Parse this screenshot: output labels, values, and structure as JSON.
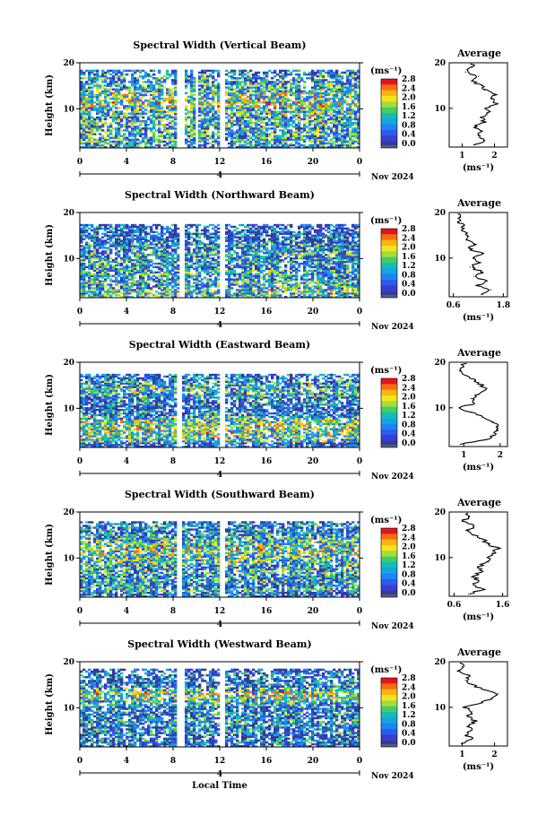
{
  "figure": {
    "xlabel": "Local Time",
    "date_label": "Nov 2024",
    "day_label": "4"
  },
  "colorbar": {
    "unit": "(ms⁻¹)",
    "ticks": [
      "2.8",
      "2.4",
      "2.0",
      "1.6",
      "1.2",
      "0.8",
      "0.4",
      "0.0"
    ],
    "colors": [
      "#e4141c",
      "#f86c10",
      "#fcb414",
      "#f4e41c",
      "#a4dc3c",
      "#44cc64",
      "#14bcb4",
      "#14a4e4",
      "#1c84f4",
      "#2c5cec",
      "#3c3cd4",
      "#303c9c",
      "#5c5c6c"
    ]
  },
  "chart_data": [
    {
      "type": "heatmap",
      "title": "Spectral Width (Vertical Beam)",
      "ylabel": "Height (km)",
      "x_ticks": [
        "0",
        "4",
        "8",
        "12",
        "16",
        "20",
        "0"
      ],
      "xlim": [
        0,
        24
      ],
      "y_ticks": [
        "20",
        "10"
      ],
      "ylim": [
        1.5,
        20
      ],
      "value_range": [
        0.0,
        3.0
      ],
      "gaps_hours": [
        [
          8.4,
          8.9
        ],
        [
          10.0,
          10.2
        ],
        [
          11.9,
          12.4
        ]
      ],
      "data_top_km": 18.5,
      "profile": {
        "title": "Average",
        "xlabel": "(ms⁻¹)",
        "x_ticks": [
          "1",
          "2"
        ],
        "x_tick_values": [
          1,
          2
        ],
        "xlim": [
          0.6,
          2.4
        ],
        "y_ticks": [
          "20",
          "10"
        ],
        "heights_km": [
          2,
          3,
          4,
          5,
          6,
          7,
          8,
          9,
          10,
          11,
          12,
          13,
          14,
          15,
          16,
          17,
          18,
          19
        ],
        "values": [
          1.4,
          1.7,
          1.5,
          1.6,
          1.4,
          1.7,
          1.6,
          1.8,
          1.7,
          2.1,
          1.9,
          2.0,
          1.7,
          1.6,
          1.3,
          1.5,
          1.1,
          1.3
        ]
      }
    },
    {
      "type": "heatmap",
      "title": "Spectral Width (Northward Beam)",
      "ylabel": "Height (km)",
      "x_ticks": [
        "0",
        "4",
        "8",
        "12",
        "16",
        "20",
        "0"
      ],
      "xlim": [
        0,
        24
      ],
      "y_ticks": [
        "20",
        "10"
      ],
      "ylim": [
        1.5,
        20
      ],
      "value_range": [
        0.0,
        3.0
      ],
      "gaps_hours": [
        [
          8.5,
          9.0
        ],
        [
          12.0,
          12.4
        ]
      ],
      "data_top_km": 17.5,
      "profile": {
        "title": "Average",
        "xlabel": "(ms⁻¹)",
        "x_ticks": [
          "0.6",
          "1.8"
        ],
        "x_tick_values": [
          0.6,
          1.8
        ],
        "xlim": [
          0.5,
          1.9
        ],
        "y_ticks": [
          "20",
          "10"
        ],
        "heights_km": [
          2,
          3,
          4,
          5,
          6,
          7,
          8,
          9,
          10,
          11,
          12,
          13,
          14,
          15,
          16,
          17,
          18,
          19
        ],
        "values": [
          1.3,
          1.5,
          1.2,
          1.4,
          1.1,
          1.3,
          1.0,
          1.2,
          1.1,
          1.3,
          1.0,
          1.1,
          0.9,
          0.95,
          0.8,
          0.85,
          0.7,
          0.75
        ]
      }
    },
    {
      "type": "heatmap",
      "title": "Spectral Width (Eastward Beam)",
      "ylabel": "Height (km)",
      "x_ticks": [
        "0",
        "4",
        "8",
        "12",
        "16",
        "20",
        "0"
      ],
      "xlim": [
        0,
        24
      ],
      "y_ticks": [
        "20",
        "10"
      ],
      "ylim": [
        1.5,
        20
      ],
      "value_range": [
        0.0,
        3.0
      ],
      "gaps_hours": [
        [
          8.3,
          8.7
        ],
        [
          12.0,
          12.4
        ]
      ],
      "data_top_km": 17.5,
      "profile": {
        "title": "Average",
        "xlabel": "(ms⁻¹)",
        "x_ticks": [
          "1",
          "2"
        ],
        "x_tick_values": [
          1,
          2
        ],
        "xlim": [
          0.6,
          2.2
        ],
        "y_ticks": [
          "20",
          "10"
        ],
        "heights_km": [
          2,
          3,
          4,
          5,
          6,
          7,
          8,
          9,
          10,
          11,
          12,
          13,
          14,
          15,
          16,
          17,
          18,
          19
        ],
        "values": [
          0.9,
          1.6,
          1.8,
          1.9,
          1.9,
          1.8,
          1.5,
          1.2,
          0.9,
          1.3,
          1.2,
          1.4,
          1.6,
          1.5,
          1.3,
          1.1,
          0.9,
          1.0
        ]
      }
    },
    {
      "type": "heatmap",
      "title": "Spectral Width (Southward Beam)",
      "ylabel": "Height (km)",
      "x_ticks": [
        "0",
        "4",
        "8",
        "12",
        "16",
        "20",
        "0"
      ],
      "xlim": [
        0,
        24
      ],
      "y_ticks": [
        "20",
        "10"
      ],
      "ylim": [
        1.5,
        20
      ],
      "value_range": [
        0.0,
        3.0
      ],
      "gaps_hours": [
        [
          8.4,
          8.8
        ],
        [
          12.0,
          12.4
        ]
      ],
      "data_top_km": 18.0,
      "profile": {
        "title": "Average",
        "xlabel": "(ms⁻¹)",
        "x_ticks": [
          "0.6",
          "1.6"
        ],
        "x_tick_values": [
          0.6,
          1.6
        ],
        "xlim": [
          0.5,
          1.7
        ],
        "y_ticks": [
          "20",
          "10"
        ],
        "heights_km": [
          2,
          3,
          4,
          5,
          6,
          7,
          8,
          9,
          10,
          11,
          12,
          13,
          14,
          15,
          16,
          17,
          18,
          19
        ],
        "values": [
          0.9,
          1.2,
          1.0,
          1.1,
          1.0,
          1.2,
          1.1,
          1.3,
          1.3,
          1.4,
          1.5,
          1.3,
          1.2,
          1.0,
          0.9,
          1.0,
          0.8,
          0.9
        ]
      }
    },
    {
      "type": "heatmap",
      "title": "Spectral Width (Westward Beam)",
      "ylabel": "Height (km)",
      "x_ticks": [
        "0",
        "4",
        "8",
        "12",
        "16",
        "20",
        "0"
      ],
      "xlim": [
        0,
        24
      ],
      "y_ticks": [
        "20",
        "10"
      ],
      "ylim": [
        1.5,
        20
      ],
      "value_range": [
        0.0,
        3.0
      ],
      "gaps_hours": [
        [
          8.4,
          8.9
        ],
        [
          12.0,
          12.4
        ]
      ],
      "data_top_km": 18.5,
      "profile": {
        "title": "Average",
        "xlabel": "(ms⁻¹)",
        "x_ticks": [
          "1",
          "2"
        ],
        "x_tick_values": [
          1,
          2
        ],
        "xlim": [
          0.6,
          2.4
        ],
        "y_ticks": [
          "20",
          "10"
        ],
        "heights_km": [
          2,
          3,
          4,
          5,
          6,
          7,
          8,
          9,
          10,
          11,
          12,
          13,
          14,
          15,
          16,
          17,
          18,
          19
        ],
        "values": [
          1.0,
          1.3,
          1.1,
          1.3,
          1.2,
          1.4,
          1.2,
          1.3,
          1.1,
          1.6,
          1.9,
          2.1,
          1.6,
          1.3,
          1.1,
          1.2,
          0.9,
          1.0
        ]
      }
    }
  ]
}
